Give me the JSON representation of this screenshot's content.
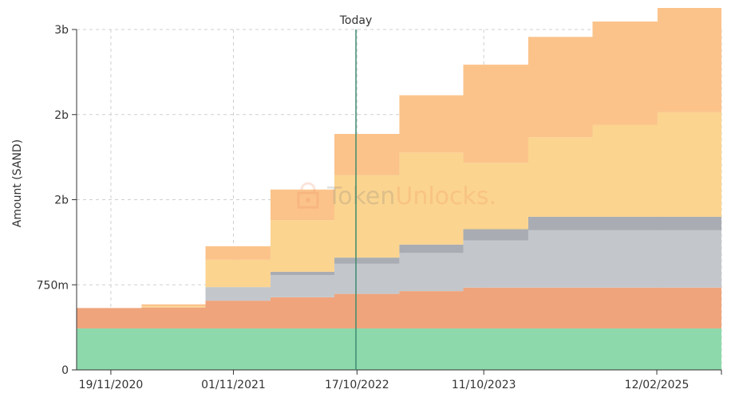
{
  "chart_data": {
    "type": "area",
    "ylabel": "Amount (SAND)",
    "ylim": [
      0,
      3000000000
    ],
    "y_ticks": [
      {
        "value": 0,
        "label": "0"
      },
      {
        "value": 750000000,
        "label": "750m"
      },
      {
        "value": 1500000000,
        "label": "2b"
      },
      {
        "value": 2250000000,
        "label": "2b"
      },
      {
        "value": 3000000000,
        "label": "3b"
      }
    ],
    "x_range": [
      "2020-08-14",
      "2025-08-14"
    ],
    "x_ticks": [
      {
        "date": "2020-11-19",
        "label": "19/11/2020"
      },
      {
        "date": "2021-11-01",
        "label": "01/11/2021"
      },
      {
        "date": "2022-10-17",
        "label": "17/10/2022"
      },
      {
        "date": "2023-10-11",
        "label": "11/10/2023"
      },
      {
        "date": "2025-02-12",
        "label": "12/02/2025"
      }
    ],
    "today": {
      "date": "2022-10-14",
      "label": "Today",
      "color": "#3d8b6f"
    },
    "grid": true,
    "watermark": {
      "prefix": "Token",
      "suffix": "Unlocks."
    },
    "step_dates": [
      "2020-08-14",
      "2021-02-14",
      "2021-08-14",
      "2022-02-14",
      "2022-08-14",
      "2023-02-14",
      "2023-08-14",
      "2024-02-14",
      "2024-08-14",
      "2025-02-14",
      "2025-08-14"
    ],
    "series": [
      {
        "color": "#8dd9ac",
        "values": [
          365000000,
          365000000,
          365000000,
          365000000,
          365000000,
          365000000,
          365000000,
          365000000,
          365000000,
          365000000,
          365000000
        ]
      },
      {
        "color": "#efa47c",
        "values": [
          180000000,
          185000000,
          245000000,
          275000000,
          305000000,
          330000000,
          360000000,
          360000000,
          360000000,
          360000000,
          360000000
        ]
      },
      {
        "color": "#d09e84",
        "values": [
          0,
          0,
          0,
          0,
          0,
          0,
          0,
          0,
          0,
          0,
          0
        ]
      },
      {
        "color": "#c3c7cc",
        "values": [
          0,
          0,
          120000000,
          195000000,
          265000000,
          335000000,
          415000000,
          505000000,
          505000000,
          505000000,
          505000000
        ]
      },
      {
        "color": "#a9adb3",
        "values": [
          0,
          0,
          0,
          30000000,
          55000000,
          75000000,
          100000000,
          120000000,
          120000000,
          120000000,
          120000000
        ]
      },
      {
        "color": "#fbd48f",
        "values": [
          0,
          10000000,
          240000000,
          455000000,
          725000000,
          810000000,
          585000000,
          700000000,
          810000000,
          920000000,
          920000000
        ]
      },
      {
        "color": "#fbc38a",
        "values": [
          0,
          18000000,
          120000000,
          270000000,
          365000000,
          505000000,
          865000000,
          885000000,
          910000000,
          920000000,
          1000000000
        ]
      }
    ]
  }
}
